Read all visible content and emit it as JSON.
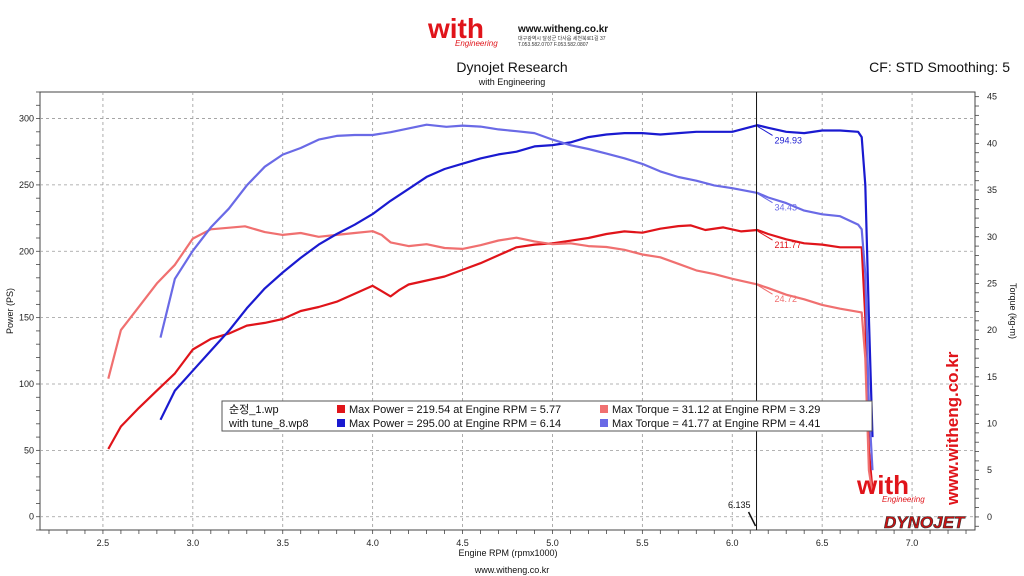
{
  "header": {
    "logo_text": "with",
    "logo_sub": "Engineering",
    "site": "www.witheng.co.kr",
    "address_line": "대구광역시 달성군 다사읍 세천북로1길 37",
    "phone_line": "T.053.582.0707 F.053.582.0807",
    "cf_info": "CF: STD Smoothing: 5"
  },
  "footer": {
    "url": "www.witheng.co.kr"
  },
  "watermarks": {
    "right_vertical": "www.witheng.co.kr",
    "logo_text": "with",
    "logo_sub": "Engineering",
    "dynojet": "DYNOJET"
  },
  "colors": {
    "run1_power": "#e0141a",
    "run1_torque": "#f07070",
    "run2_power": "#1a1ad0",
    "run2_torque": "#6a6ae6",
    "grid": "#9a9a9a",
    "logo": "#e0141a"
  },
  "chart_data": {
    "type": "line",
    "title": "Dynojet Research",
    "subtitle": "with Engineering",
    "xlabel": "Engine RPM (rpmx1000)",
    "ylabel": "Power (PS)",
    "y2label": "Torque (kg-m)",
    "xlim": [
      2.15,
      7.35
    ],
    "ylim": [
      -10,
      320
    ],
    "y2lim": [
      -1.4,
      45.5
    ],
    "x_ticks": [
      2.5,
      3.0,
      3.5,
      4.0,
      4.5,
      5.0,
      5.5,
      6.0,
      6.5,
      7.0
    ],
    "y_ticks": [
      0,
      50,
      100,
      150,
      200,
      250,
      300
    ],
    "y2_ticks": [
      0,
      5,
      10,
      15,
      20,
      25,
      30,
      35,
      40,
      45
    ],
    "grid": true,
    "cursor": {
      "x": 6.135,
      "label": "6.135"
    },
    "legend": {
      "position": "bottom-left",
      "rows": [
        {
          "file": "순정_1.wp",
          "power_text": "Max Power = 219.54 at Engine RPM = 5.77",
          "torque_text": "Max Torque = 31.12 at Engine RPM = 3.29"
        },
        {
          "file": "with tune_8.wp8",
          "power_text": "Max Power = 295.00 at Engine RPM = 6.14",
          "torque_text": "Max Torque = 41.77 at Engine RPM = 4.41"
        }
      ]
    },
    "series": [
      {
        "name": "Max Power",
        "run": "순정_1.wp",
        "axis": "left",
        "color": "#e0141a",
        "marker_label": "211.77",
        "points": [
          [
            2.53,
            51
          ],
          [
            2.6,
            68
          ],
          [
            2.7,
            82
          ],
          [
            2.8,
            95
          ],
          [
            2.9,
            108
          ],
          [
            3.0,
            126
          ],
          [
            3.1,
            134
          ],
          [
            3.2,
            138
          ],
          [
            3.3,
            144
          ],
          [
            3.4,
            146
          ],
          [
            3.5,
            149
          ],
          [
            3.6,
            155
          ],
          [
            3.7,
            158
          ],
          [
            3.8,
            162
          ],
          [
            3.9,
            168
          ],
          [
            4.0,
            174
          ],
          [
            4.05,
            170
          ],
          [
            4.1,
            166
          ],
          [
            4.15,
            171
          ],
          [
            4.2,
            175
          ],
          [
            4.3,
            178
          ],
          [
            4.4,
            181
          ],
          [
            4.5,
            186
          ],
          [
            4.6,
            191
          ],
          [
            4.7,
            197
          ],
          [
            4.8,
            203
          ],
          [
            4.9,
            205
          ],
          [
            5.0,
            206
          ],
          [
            5.1,
            208
          ],
          [
            5.2,
            210
          ],
          [
            5.3,
            213
          ],
          [
            5.4,
            215
          ],
          [
            5.5,
            214
          ],
          [
            5.6,
            217
          ],
          [
            5.7,
            219
          ],
          [
            5.77,
            219.5
          ],
          [
            5.85,
            216
          ],
          [
            5.95,
            218
          ],
          [
            6.05,
            215
          ],
          [
            6.14,
            216
          ],
          [
            6.2,
            213
          ],
          [
            6.3,
            209
          ],
          [
            6.4,
            206
          ],
          [
            6.5,
            205
          ],
          [
            6.6,
            203
          ],
          [
            6.72,
            203
          ],
          [
            6.74,
            150
          ],
          [
            6.76,
            50
          ],
          [
            6.78,
            20
          ]
        ]
      },
      {
        "name": "Max Torque",
        "run": "순정_1.wp",
        "axis": "right",
        "color": "#f07070",
        "marker_label": "24.72",
        "points": [
          [
            2.53,
            14.8
          ],
          [
            2.6,
            20
          ],
          [
            2.7,
            22.5
          ],
          [
            2.8,
            25
          ],
          [
            2.9,
            27
          ],
          [
            3.0,
            29.8
          ],
          [
            3.1,
            30.8
          ],
          [
            3.29,
            31.12
          ],
          [
            3.4,
            30.5
          ],
          [
            3.5,
            30.2
          ],
          [
            3.6,
            30.4
          ],
          [
            3.7,
            30
          ],
          [
            3.8,
            30.2
          ],
          [
            3.9,
            30.4
          ],
          [
            4.0,
            30.6
          ],
          [
            4.05,
            30.2
          ],
          [
            4.1,
            29.4
          ],
          [
            4.2,
            29
          ],
          [
            4.3,
            29.2
          ],
          [
            4.4,
            28.8
          ],
          [
            4.5,
            28.7
          ],
          [
            4.6,
            29.1
          ],
          [
            4.7,
            29.6
          ],
          [
            4.8,
            29.9
          ],
          [
            4.9,
            29.5
          ],
          [
            5.0,
            29.2
          ],
          [
            5.1,
            29.3
          ],
          [
            5.2,
            29
          ],
          [
            5.3,
            28.9
          ],
          [
            5.4,
            28.6
          ],
          [
            5.5,
            28.1
          ],
          [
            5.6,
            27.8
          ],
          [
            5.7,
            27.1
          ],
          [
            5.8,
            26.4
          ],
          [
            5.9,
            26.0
          ],
          [
            6.0,
            25.5
          ],
          [
            6.14,
            24.9
          ],
          [
            6.2,
            24.5
          ],
          [
            6.3,
            23.8
          ],
          [
            6.4,
            23.3
          ],
          [
            6.5,
            22.7
          ],
          [
            6.6,
            22.3
          ],
          [
            6.72,
            21.9
          ],
          [
            6.74,
            17
          ],
          [
            6.76,
            5
          ],
          [
            6.78,
            2.5
          ]
        ]
      },
      {
        "name": "Max Power",
        "run": "with tune_8.wp8",
        "axis": "left",
        "color": "#1a1ad0",
        "marker_label": "294.93",
        "points": [
          [
            2.82,
            73
          ],
          [
            2.9,
            95
          ],
          [
            3.0,
            110
          ],
          [
            3.1,
            125
          ],
          [
            3.2,
            140
          ],
          [
            3.3,
            157
          ],
          [
            3.4,
            172
          ],
          [
            3.5,
            184
          ],
          [
            3.6,
            195
          ],
          [
            3.7,
            205
          ],
          [
            3.8,
            213
          ],
          [
            3.9,
            220
          ],
          [
            4.0,
            228
          ],
          [
            4.1,
            238
          ],
          [
            4.2,
            247
          ],
          [
            4.3,
            256
          ],
          [
            4.4,
            262
          ],
          [
            4.5,
            266
          ],
          [
            4.6,
            270
          ],
          [
            4.7,
            273
          ],
          [
            4.8,
            275
          ],
          [
            4.9,
            279
          ],
          [
            5.0,
            280
          ],
          [
            5.1,
            282
          ],
          [
            5.2,
            286
          ],
          [
            5.3,
            288
          ],
          [
            5.4,
            289
          ],
          [
            5.5,
            289
          ],
          [
            5.6,
            288
          ],
          [
            5.7,
            289
          ],
          [
            5.8,
            290
          ],
          [
            5.9,
            290
          ],
          [
            6.0,
            290
          ],
          [
            6.14,
            295
          ],
          [
            6.2,
            293
          ],
          [
            6.3,
            290
          ],
          [
            6.4,
            289
          ],
          [
            6.5,
            291
          ],
          [
            6.6,
            291
          ],
          [
            6.7,
            290
          ],
          [
            6.72,
            286
          ],
          [
            6.74,
            250
          ],
          [
            6.76,
            150
          ],
          [
            6.78,
            60
          ]
        ]
      },
      {
        "name": "Max Torque",
        "run": "with tune_8.wp8",
        "axis": "right",
        "color": "#6a6ae6",
        "marker_label": "34.43",
        "points": [
          [
            2.82,
            19.2
          ],
          [
            2.9,
            25.5
          ],
          [
            3.0,
            28.5
          ],
          [
            3.1,
            31
          ],
          [
            3.2,
            33
          ],
          [
            3.3,
            35.5
          ],
          [
            3.4,
            37.5
          ],
          [
            3.5,
            38.8
          ],
          [
            3.6,
            39.5
          ],
          [
            3.7,
            40.4
          ],
          [
            3.8,
            40.8
          ],
          [
            3.9,
            40.9
          ],
          [
            4.0,
            40.9
          ],
          [
            4.1,
            41.2
          ],
          [
            4.2,
            41.6
          ],
          [
            4.3,
            42
          ],
          [
            4.41,
            41.77
          ],
          [
            4.5,
            41.9
          ],
          [
            4.6,
            41.8
          ],
          [
            4.7,
            41.5
          ],
          [
            4.8,
            41.3
          ],
          [
            4.9,
            41.1
          ],
          [
            5.0,
            40.4
          ],
          [
            5.1,
            39.8
          ],
          [
            5.2,
            39.4
          ],
          [
            5.3,
            38.9
          ],
          [
            5.4,
            38.4
          ],
          [
            5.5,
            37.8
          ],
          [
            5.6,
            37.0
          ],
          [
            5.7,
            36.4
          ],
          [
            5.8,
            36.0
          ],
          [
            5.9,
            35.5
          ],
          [
            6.0,
            35.2
          ],
          [
            6.14,
            34.7
          ],
          [
            6.2,
            34.2
          ],
          [
            6.3,
            33.6
          ],
          [
            6.4,
            32.8
          ],
          [
            6.5,
            32.4
          ],
          [
            6.6,
            32.2
          ],
          [
            6.7,
            31.3
          ],
          [
            6.72,
            30.8
          ],
          [
            6.74,
            26
          ],
          [
            6.76,
            12
          ],
          [
            6.78,
            5
          ]
        ]
      }
    ]
  }
}
